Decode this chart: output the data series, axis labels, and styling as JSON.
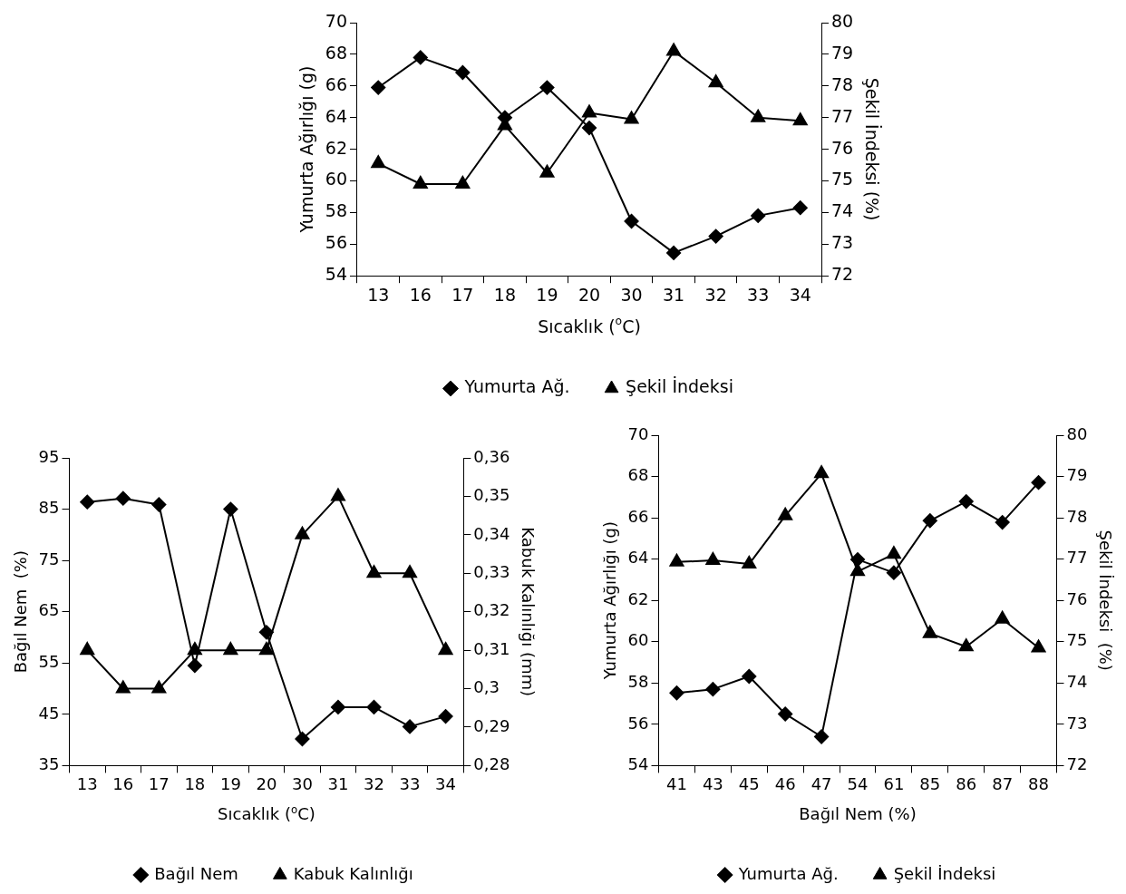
{
  "chart_data": [
    {
      "type": "line",
      "categories": [
        "13",
        "16",
        "17",
        "18",
        "19",
        "20",
        "30",
        "31",
        "32",
        "33",
        "34"
      ],
      "xlabel": "Sıcaklık ($^{o}$C)",
      "ylabel": "Yumurta Ağırlığı (g)",
      "y2label": "Şekil İndeksi (%)",
      "ylim": [
        54,
        70
      ],
      "yticks": [
        54,
        56,
        58,
        60,
        62,
        64,
        66,
        68,
        70
      ],
      "y2lim": [
        72,
        80
      ],
      "y2ticks": [
        72,
        73,
        74,
        75,
        76,
        77,
        78,
        79,
        80
      ],
      "grid": false,
      "legend": "bottom",
      "line_style": "solid",
      "series": [
        {
          "name": "Yumurta Ağ.",
          "color": "#000000",
          "marker": "diamond",
          "values": [
            65.9,
            67.8,
            66.85,
            64.0,
            65.9,
            63.35,
            57.45,
            55.45,
            56.5,
            57.8,
            58.3
          ]
        },
        {
          "name": "Şekil İndeksi",
          "color": "#000000",
          "marker": "triangle",
          "axis": "y2",
          "values": [
            75.55,
            74.9,
            74.9,
            76.75,
            75.25,
            77.15,
            76.95,
            79.1,
            78.1,
            77.0,
            76.9
          ]
        }
      ]
    },
    {
      "type": "line",
      "categories": [
        "13",
        "16",
        "17",
        "18",
        "19",
        "20",
        "30",
        "31",
        "32",
        "33",
        "34"
      ],
      "xlabel": "Sıcaklık ($^{o}$C)",
      "ylabel": "Bağıl Nem  (%)",
      "y2label": "Kabuk Kalınlığı (mm)",
      "ylim": [
        35,
        95
      ],
      "yticks": [
        35,
        45,
        55,
        65,
        75,
        85,
        95
      ],
      "y2lim": [
        0.28,
        0.36
      ],
      "y2ticks": [
        {
          "value": 0.28,
          "label": "0,28"
        },
        {
          "value": 0.29,
          "label": "0,29"
        },
        {
          "value": 0.3,
          "label": "0,3"
        },
        {
          "value": 0.31,
          "label": "0,31"
        },
        {
          "value": 0.32,
          "label": "0,32"
        },
        {
          "value": 0.33,
          "label": "0,33"
        },
        {
          "value": 0.34,
          "label": "0,34"
        },
        {
          "value": 0.35,
          "label": "0,35"
        },
        {
          "value": 0.36,
          "label": "0,36"
        }
      ],
      "grid": false,
      "legend": "bottom",
      "line_style": "solid",
      "series": [
        {
          "name": "Bağıl Nem",
          "color": "#000000",
          "marker": "diamond",
          "values": [
            86.4,
            87.1,
            85.9,
            54.5,
            85.0,
            61.0,
            40.2,
            46.4,
            46.4,
            42.6,
            44.6
          ]
        },
        {
          "name": "Kabuk Kalınlığı",
          "color": "#000000",
          "marker": "triangle",
          "axis": "y2",
          "values": [
            0.31,
            0.3,
            0.3,
            0.31,
            0.31,
            0.31,
            0.34,
            0.35,
            0.33,
            0.33,
            0.31
          ]
        }
      ]
    },
    {
      "type": "line",
      "categories": [
        "41",
        "43",
        "45",
        "46",
        "47",
        "54",
        "61",
        "85",
        "86",
        "87",
        "88"
      ],
      "xlabel": "Bağıl Nem (%)",
      "ylabel": "Yumurta Ağırlığı (g)",
      "y2label": "Şekil İndeksi  (%)",
      "ylim": [
        54,
        70
      ],
      "yticks": [
        54,
        56,
        58,
        60,
        62,
        64,
        66,
        68,
        70
      ],
      "y2lim": [
        72,
        80
      ],
      "y2ticks": [
        72,
        73,
        74,
        75,
        76,
        77,
        78,
        79,
        80
      ],
      "grid": false,
      "legend": "bottom",
      "line_style": "solid",
      "series": [
        {
          "name": "Yumurta Ağ.",
          "color": "#000000",
          "marker": "diamond",
          "values": [
            57.52,
            57.7,
            58.32,
            56.5,
            55.4,
            63.98,
            63.34,
            65.86,
            66.79,
            65.78,
            67.71
          ]
        },
        {
          "name": "Şekil İndeksi",
          "color": "#000000",
          "marker": "triangle",
          "axis": "y2",
          "values": [
            76.93,
            76.97,
            76.88,
            78.05,
            79.07,
            76.7,
            77.12,
            75.2,
            74.88,
            75.55,
            74.85
          ]
        }
      ]
    }
  ]
}
